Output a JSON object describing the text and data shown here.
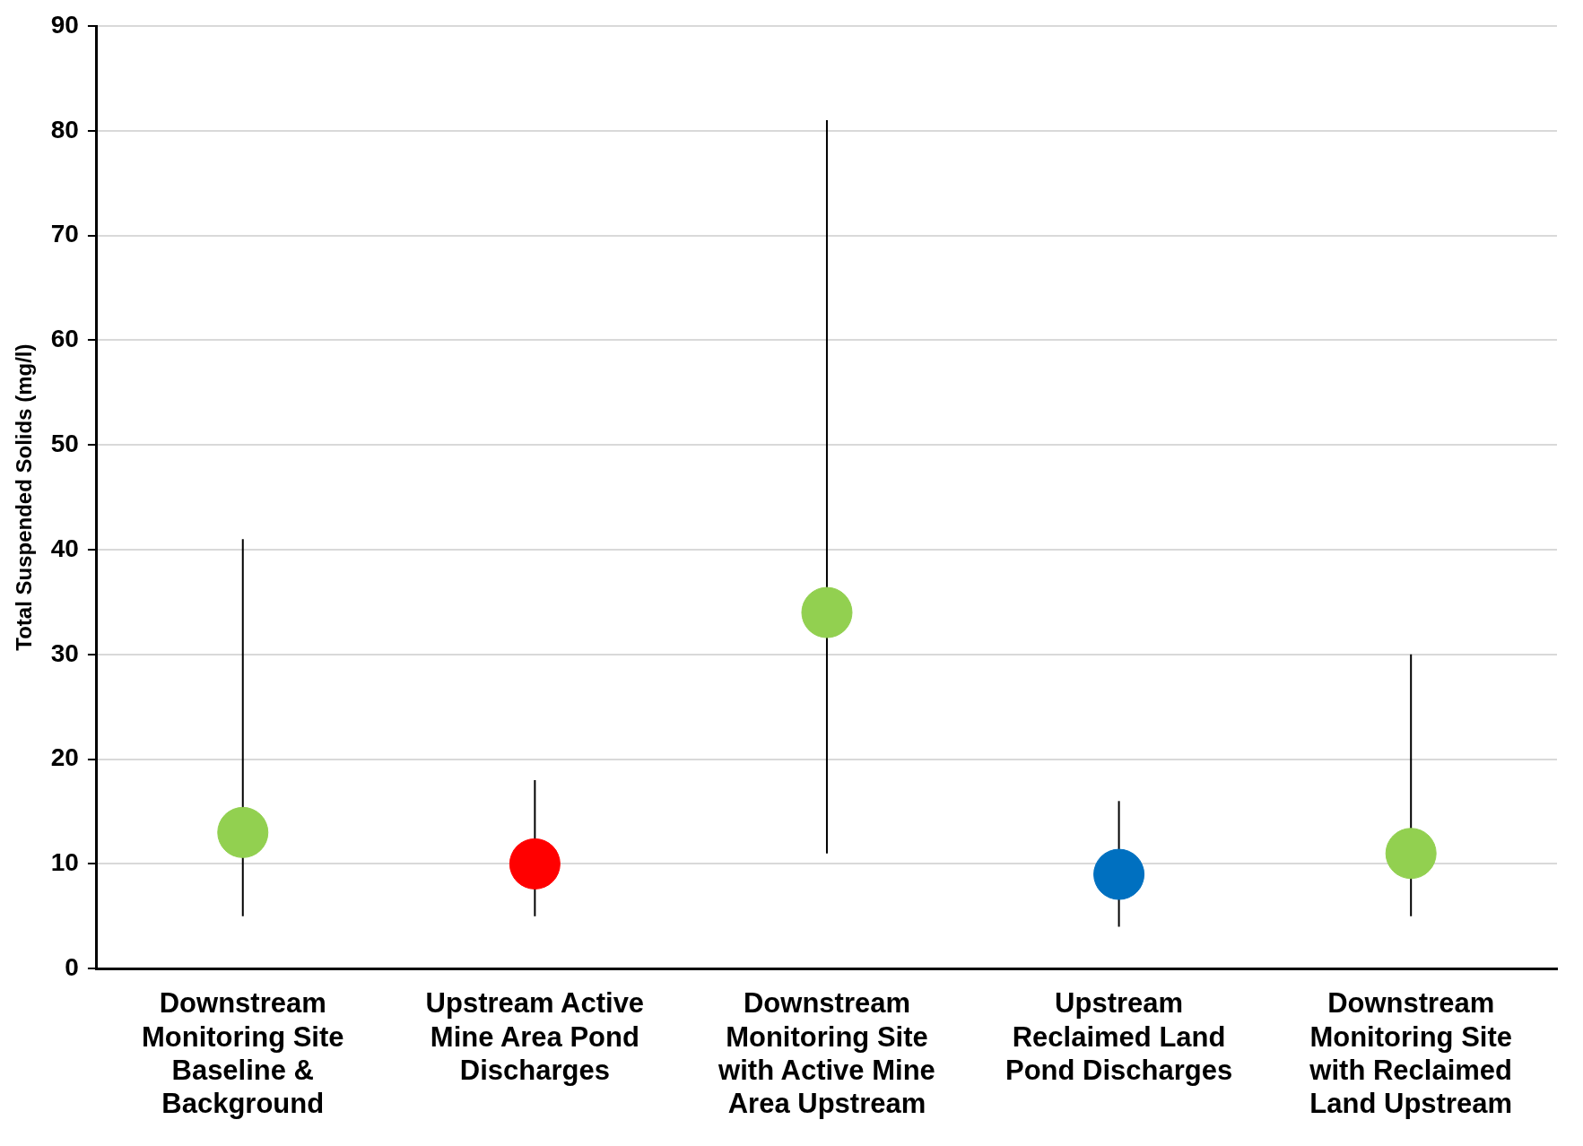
{
  "chart_data": {
    "type": "scatter",
    "ylabel": "Total Suspended Solids (mg/l)",
    "categories": [
      "Downstream Monitoring Site Baseline & Background",
      "Upstream Active Mine Area Pond Discharges",
      "Downstream Monitoring Site with Active Mine Area Upstream",
      "Upstream Reclaimed Land Pond Discharges",
      "Downstream Monitoring Site with Reclaimed Land Upstream"
    ],
    "series": [
      {
        "colors": [
          "#92d050",
          "#ff0000",
          "#92d050",
          "#0070c0",
          "#92d050"
        ],
        "values": [
          13,
          10,
          34,
          9,
          11
        ],
        "errors": [
          [
            5,
            41
          ],
          [
            5,
            18
          ],
          [
            11,
            81
          ],
          [
            4,
            16
          ],
          [
            5,
            30
          ]
        ]
      }
    ],
    "ylim": [
      0,
      90
    ],
    "yticks": [
      0,
      10,
      20,
      30,
      40,
      50,
      60,
      70,
      80,
      90
    ],
    "grid": "y",
    "legend": false,
    "marker": "circle"
  }
}
